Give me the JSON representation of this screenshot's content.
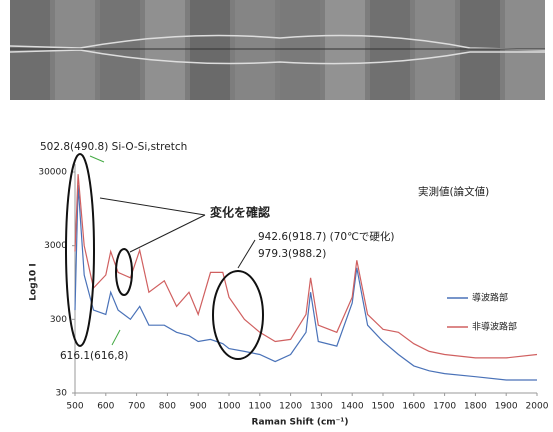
{
  "chart_data": {
    "type": "line",
    "log_scale": true,
    "x_label": "Raman Shift (cm⁻¹)",
    "y_label": "Log10 I",
    "annotations": [
      "502.8(490.8) Si-O-Si,stretch",
      "実測値(論文値)",
      "変化を確認",
      "942.6(918.7)  (70℃で硬化)",
      "979.3(988.2)",
      "616.1(616,8)"
    ],
    "x": [
      500,
      510,
      530,
      560,
      600,
      616,
      640,
      680,
      710,
      740,
      790,
      830,
      870,
      900,
      940,
      980,
      1000,
      1050,
      1100,
      1150,
      1200,
      1250,
      1265,
      1290,
      1350,
      1400,
      1415,
      1450,
      1500,
      1550,
      1600,
      1650,
      1700,
      1800,
      1900,
      2000
    ],
    "series": [
      {
        "name": "導波路部",
        "color": "#4a72b8",
        "values": [
          400,
          20000,
          1200,
          400,
          350,
          700,
          400,
          300,
          450,
          250,
          250,
          200,
          180,
          150,
          160,
          140,
          120,
          110,
          100,
          80,
          100,
          200,
          700,
          150,
          130,
          500,
          1500,
          250,
          150,
          100,
          70,
          60,
          55,
          50,
          45,
          45
        ]
      },
      {
        "name": "非導波路部",
        "color": "#d06060",
        "values": [
          2500,
          28000,
          3000,
          800,
          1200,
          2500,
          1300,
          1100,
          2600,
          700,
          1000,
          450,
          700,
          350,
          1300,
          1300,
          600,
          300,
          200,
          150,
          160,
          350,
          1100,
          250,
          200,
          600,
          1900,
          350,
          220,
          200,
          140,
          110,
          100,
          90,
          90,
          100
        ]
      }
    ],
    "xlim": [
      500,
      2000
    ],
    "xticks": [
      500,
      600,
      700,
      800,
      900,
      1000,
      1100,
      1200,
      1300,
      1400,
      1500,
      1600,
      1700,
      1800,
      1900,
      2000
    ],
    "ylim": [
      30,
      30000
    ],
    "yticks": [
      30,
      300,
      3000,
      30000
    ]
  }
}
